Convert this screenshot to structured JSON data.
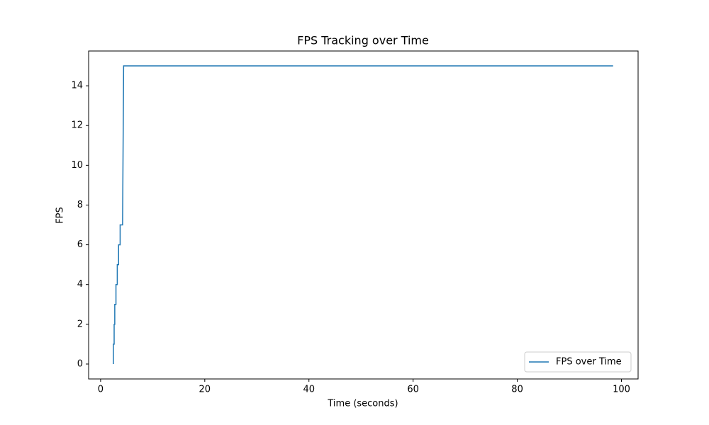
{
  "chart_data": {
    "type": "line",
    "title": "FPS Tracking over Time",
    "xlabel": "Time (seconds)",
    "ylabel": "FPS",
    "x": [
      2.45,
      2.45,
      2.6,
      2.6,
      2.72,
      2.72,
      2.95,
      2.95,
      3.2,
      3.2,
      3.45,
      3.45,
      3.75,
      3.75,
      4.2,
      4.22,
      4.42,
      98.4
    ],
    "series": [
      {
        "name": "FPS over Time",
        "color": "#1f77b4",
        "values": [
          0,
          1,
          1,
          2,
          2,
          3,
          3,
          4,
          4,
          5,
          5,
          6,
          6,
          7,
          7,
          7,
          15,
          15
        ]
      }
    ],
    "xlim": [
      -2.3,
      103.2
    ],
    "ylim": [
      -0.75,
      15.75
    ],
    "xticks": [
      0,
      20,
      40,
      60,
      80,
      100
    ],
    "yticks": [
      0,
      2,
      4,
      6,
      8,
      10,
      12,
      14
    ],
    "grid": false,
    "legend": "lower right"
  }
}
